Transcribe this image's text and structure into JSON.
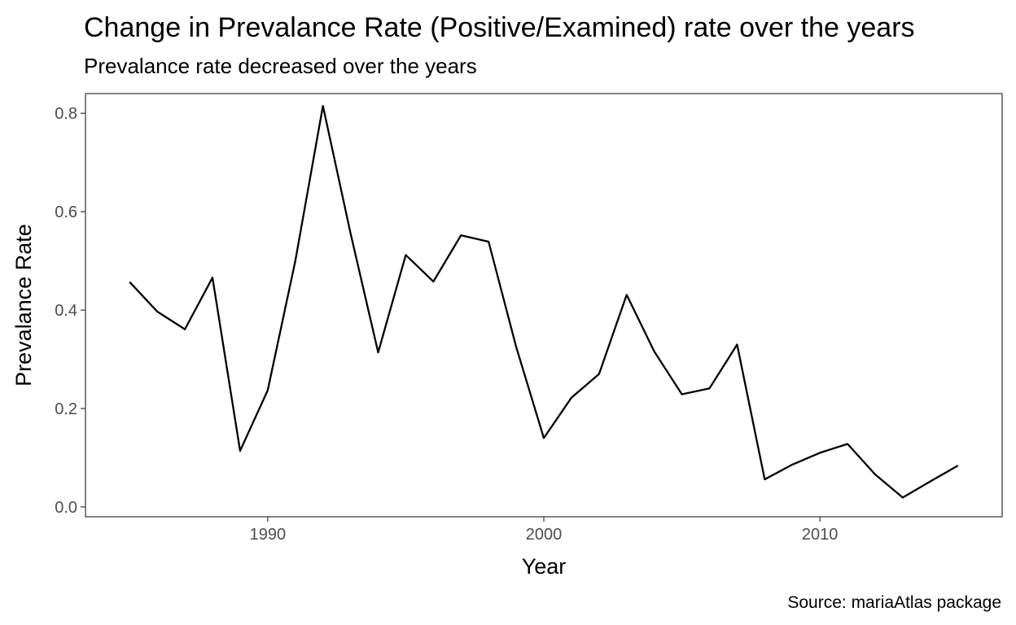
{
  "chart_data": {
    "type": "line",
    "title": "Change in Prevalance Rate (Positive/Examined) rate over the years",
    "subtitle": "Prevalance rate decreased over the years",
    "xlabel": "Year",
    "ylabel": "Prevalance Rate",
    "caption": "Source: mariaAtlas package",
    "xlim": [
      1983.4,
      2016.6
    ],
    "ylim": [
      -0.02,
      0.84
    ],
    "x_ticks": [
      1990,
      2000,
      2010
    ],
    "y_ticks": [
      0.0,
      0.2,
      0.4,
      0.6,
      0.8
    ],
    "y_tick_labels": [
      "0.0",
      "0.2",
      "0.4",
      "0.6",
      "0.8"
    ],
    "grid": false,
    "line_color": "#000000",
    "x": [
      1985,
      1986,
      1987,
      1988,
      1989,
      1990,
      1991,
      1992,
      1993,
      1994,
      1995,
      1996,
      1997,
      1998,
      1999,
      2000,
      2001,
      2002,
      2003,
      2004,
      2005,
      2006,
      2007,
      2008,
      2009,
      2010,
      2011,
      2012,
      2013,
      2014,
      2015
    ],
    "y": [
      0.457,
      0.397,
      0.361,
      0.466,
      0.114,
      0.237,
      0.5,
      0.815,
      0.556,
      0.314,
      0.512,
      0.458,
      0.552,
      0.539,
      0.325,
      0.14,
      0.222,
      0.27,
      0.431,
      0.316,
      0.229,
      0.241,
      0.33,
      0.056,
      0.086,
      0.11,
      0.128,
      0.066,
      0.019,
      0.052,
      0.084
    ]
  }
}
